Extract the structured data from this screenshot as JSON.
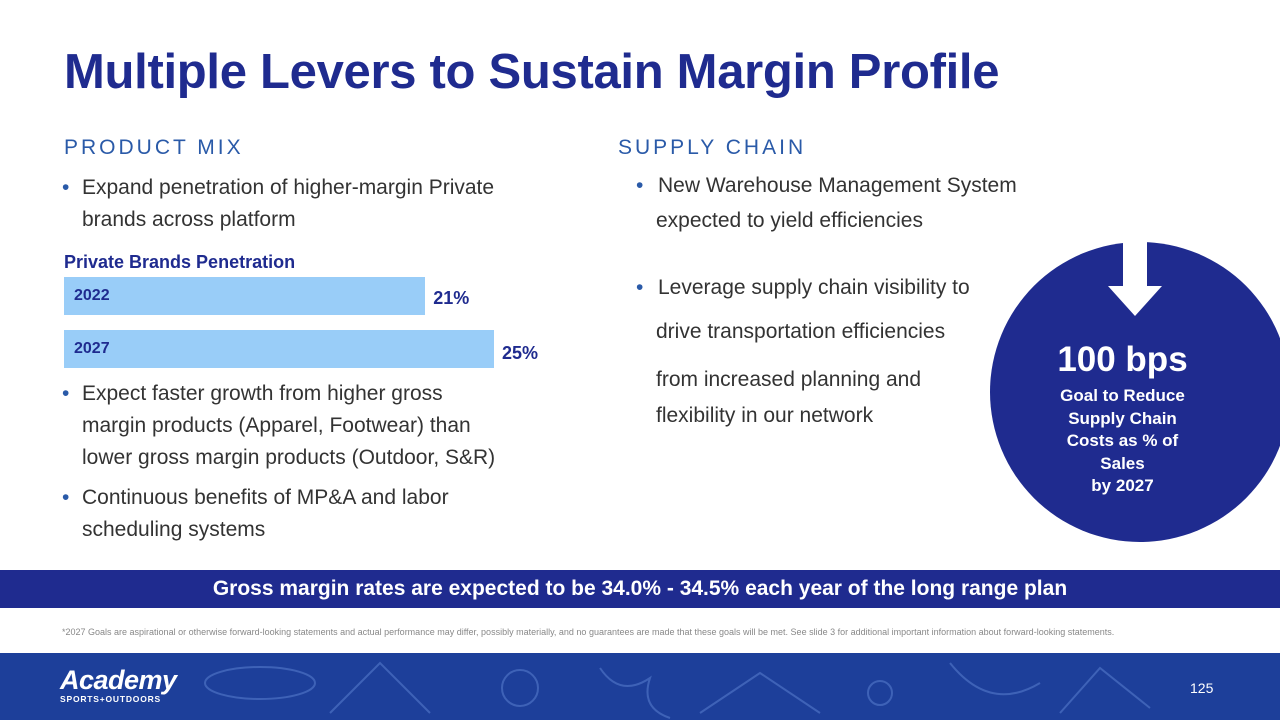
{
  "title": "Multiple Levers to Sustain Margin Profile",
  "product_mix": {
    "heading": "PRODUCT MIX",
    "bullet1_line1": "Expand penetration of higher-margin Private",
    "bullet1_line2": "brands across platform",
    "bullet2_line1": "Expect faster growth from higher gross",
    "bullet2_line2": "margin products (Apparel, Footwear) than",
    "bullet2_line3": "lower gross margin products (Outdoor, S&R)",
    "bullet3_line1": "Continuous benefits of MP&A and labor",
    "bullet3_line2": "scheduling systems",
    "bullet_symbol": "•"
  },
  "chart_data": {
    "type": "bar",
    "orientation": "horizontal",
    "title": "Private Brands Penetration",
    "categories": [
      "2022",
      "2027"
    ],
    "values": [
      21,
      25
    ],
    "value_labels": [
      "21%",
      "25%"
    ],
    "unit": "%",
    "color": "#99cdf8"
  },
  "supply_chain": {
    "heading": "SUPPLY CHAIN",
    "bullet1_line1": "New Warehouse Management System",
    "bullet1_line2": "expected to yield efficiencies",
    "bullet2_line1": "Leverage supply chain visibility to",
    "bullet2_line2": "drive transportation efficiencies",
    "bullet2_line3": "from increased planning and",
    "bullet2_line4": "flexibility in our network"
  },
  "goal": {
    "value": "100 bps",
    "line1": "Goal to Reduce",
    "line2": "Supply Chain",
    "line3": "Costs as % of",
    "line4": "Sales",
    "line5": "by 2027"
  },
  "banner": "Gross margin rates are expected to be 34.0% - 34.5% each year of the long range plan",
  "footnote": "*2027 Goals are aspirational or otherwise forward-looking statements and actual performance may differ, possibly materially, and no guarantees are made that these goals will be met. See slide 3 for additional important information about forward-looking statements.",
  "logo": {
    "name": "Academy",
    "tagline": "SPORTS+OUTDOORS"
  },
  "page_number": "125",
  "colors": {
    "navy": "#1f2b8f",
    "accent_blue": "#2a5aa8",
    "bar_blue": "#99cdf8",
    "footer_blue": "#1d3f9a"
  }
}
